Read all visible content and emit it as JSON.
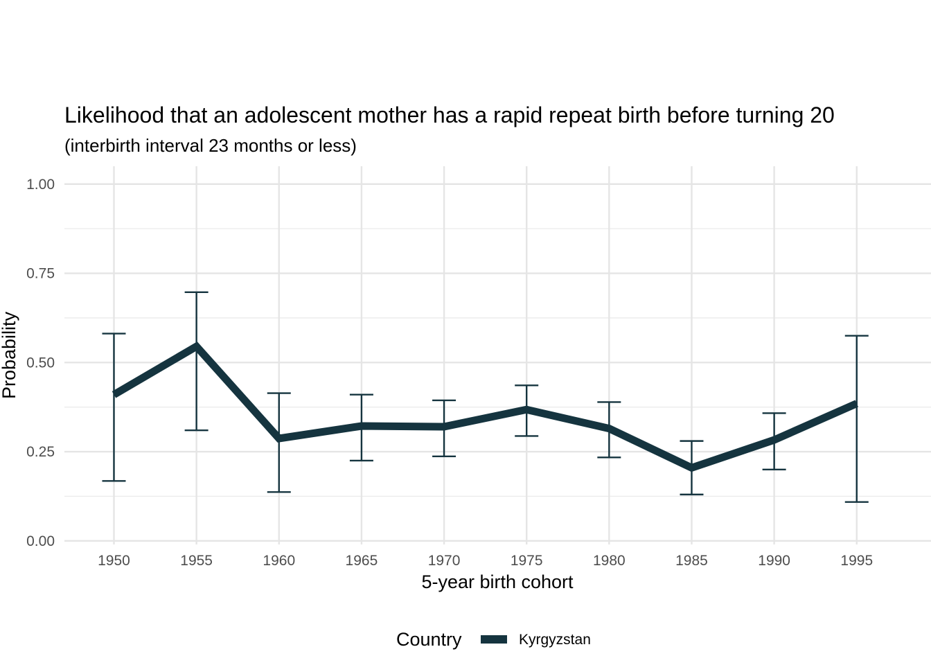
{
  "chart_data": {
    "type": "line",
    "title": "Likelihood that an adolescent mother has a rapid repeat birth before turning 20",
    "subtitle": "(interbirth interval 23 months or less)",
    "xlabel": "5-year birth cohort",
    "ylabel": "Probability",
    "x": [
      1950,
      1955,
      1960,
      1965,
      1970,
      1975,
      1980,
      1985,
      1990,
      1995
    ],
    "xlim": [
      1947,
      1999.5
    ],
    "ylim": [
      -0.01,
      1.05
    ],
    "yticks": [
      "0.00",
      "0.25",
      "0.50",
      "0.75",
      "1.00"
    ],
    "ytick_values": [
      0,
      0.25,
      0.5,
      0.75,
      1.0
    ],
    "grid": true,
    "legend": {
      "title": "Country",
      "position": "bottom"
    },
    "series": [
      {
        "name": "Kyrgyzstan",
        "color": "#15343f",
        "values": [
          0.41,
          0.545,
          0.287,
          0.322,
          0.32,
          0.368,
          0.315,
          0.205,
          0.283,
          0.385
        ],
        "lower": [
          0.168,
          0.31,
          0.137,
          0.225,
          0.237,
          0.294,
          0.234,
          0.13,
          0.2,
          0.109
        ],
        "upper": [
          0.581,
          0.697,
          0.414,
          0.41,
          0.394,
          0.436,
          0.389,
          0.28,
          0.358,
          0.575
        ]
      }
    ]
  }
}
